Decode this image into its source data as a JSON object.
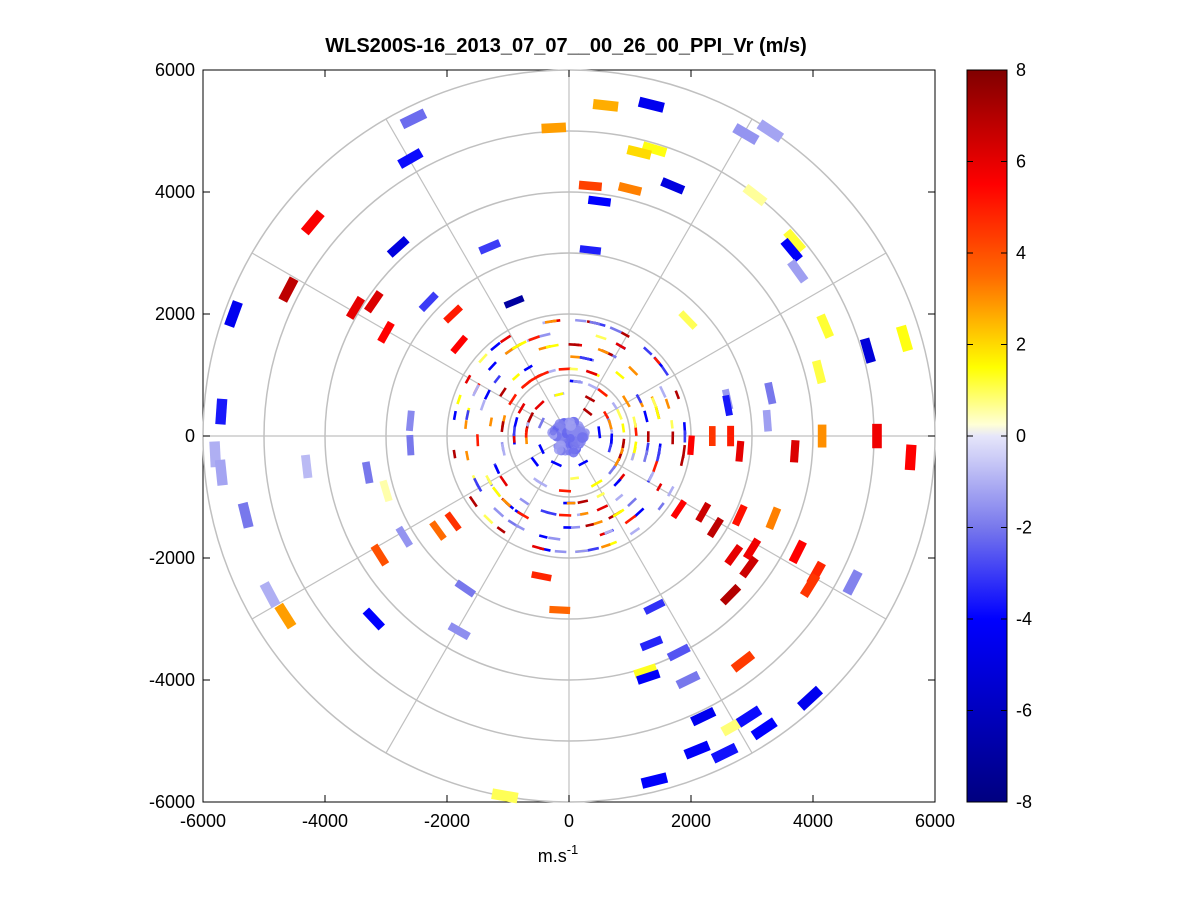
{
  "chart_data": {
    "type": "scatter",
    "subtype": "polar-ppi",
    "title": "WLS200S-16_2013_07_07__00_26_00_PPI_Vr (m/s)",
    "xlabel_base": "m.s",
    "xlabel_exp": "-1",
    "ylabel": "",
    "xlim": [
      -6000,
      6000
    ],
    "ylim": [
      -6000,
      6000
    ],
    "xticks": [
      "-6000",
      "-4000",
      "-2000",
      "0",
      "2000",
      "4000",
      "6000"
    ],
    "yticks": [
      "6000",
      "4000",
      "2000",
      "0",
      "-2000",
      "-4000",
      "-6000"
    ],
    "xtick_values": [
      -6000,
      -4000,
      -2000,
      0,
      2000,
      4000,
      6000
    ],
    "ytick_values": [
      6000,
      4000,
      2000,
      0,
      -2000,
      -4000,
      -6000
    ],
    "grid_rings_m": [
      1000,
      2000,
      3000,
      4000,
      5000,
      6000
    ],
    "spoke_angles_deg": [
      0,
      30,
      60,
      90,
      120,
      150,
      180,
      210,
      240,
      270,
      300,
      330
    ],
    "colorbar": {
      "min": -8,
      "max": 8,
      "ticks": [
        "8",
        "6",
        "4",
        "2",
        "0",
        "-2",
        "-4",
        "-6",
        "-8"
      ],
      "tick_values": [
        8,
        6,
        4,
        2,
        0,
        -2,
        -4,
        -6,
        -8
      ],
      "stops": [
        {
          "v": -8,
          "c": "#000080"
        },
        {
          "v": -4,
          "c": "#0000ff"
        },
        {
          "v": -2,
          "c": "#7878ec"
        },
        {
          "v": 0,
          "c": "#e6e6fa"
        },
        {
          "v": 0.01,
          "c": "#ffffff"
        },
        {
          "v": 1.5,
          "c": "#ffff00"
        },
        {
          "v": 3.5,
          "c": "#ff6a00"
        },
        {
          "v": 5.5,
          "c": "#ff0000"
        },
        {
          "v": 8,
          "c": "#800000"
        }
      ]
    },
    "points": [
      {
        "x": 1350,
        "y": 5430,
        "v": -4.5
      },
      {
        "x": 600,
        "y": 5420,
        "v": 2.6
      },
      {
        "x": -250,
        "y": 5050,
        "v": 2.8
      },
      {
        "x": -2550,
        "y": 5200,
        "v": -2.2
      },
      {
        "x": 1400,
        "y": 4700,
        "v": 1.4
      },
      {
        "x": 1150,
        "y": 4650,
        "v": 2.0
      },
      {
        "x": 1700,
        "y": 4100,
        "v": -5.0
      },
      {
        "x": 1000,
        "y": 4050,
        "v": 3.2
      },
      {
        "x": 350,
        "y": 4100,
        "v": 4.3
      },
      {
        "x": -2600,
        "y": 4550,
        "v": -3.8
      },
      {
        "x": 2900,
        "y": 4950,
        "v": -1.5
      },
      {
        "x": 3300,
        "y": 5000,
        "v": -1.2
      },
      {
        "x": 3050,
        "y": 3950,
        "v": 0.6
      },
      {
        "x": 3700,
        "y": 3200,
        "v": 1.2
      },
      {
        "x": 3650,
        "y": 3050,
        "v": -4.2
      },
      {
        "x": 3750,
        "y": 2700,
        "v": -1.3
      },
      {
        "x": 500,
        "y": 3850,
        "v": -4.0
      },
      {
        "x": 350,
        "y": 3050,
        "v": -3.5
      },
      {
        "x": -2800,
        "y": 3100,
        "v": -5.0
      },
      {
        "x": -1300,
        "y": 3100,
        "v": -3.0
      },
      {
        "x": -4200,
        "y": 3500,
        "v": 5.6
      },
      {
        "x": -4600,
        "y": 2400,
        "v": 6.8
      },
      {
        "x": -3500,
        "y": 2100,
        "v": 6.0
      },
      {
        "x": -3200,
        "y": 2200,
        "v": 6.2
      },
      {
        "x": -3000,
        "y": 1700,
        "v": 5.5
      },
      {
        "x": -2300,
        "y": 2200,
        "v": -3.0
      },
      {
        "x": -1900,
        "y": 2000,
        "v": 5.0
      },
      {
        "x": -1800,
        "y": 1500,
        "v": 5.5
      },
      {
        "x": -900,
        "y": 2200,
        "v": -7.0
      },
      {
        "x": -5500,
        "y": 2000,
        "v": -4.5
      },
      {
        "x": 1950,
        "y": 1900,
        "v": 1.0
      },
      {
        "x": 4200,
        "y": 1800,
        "v": 1.2
      },
      {
        "x": 4100,
        "y": 1050,
        "v": 1.1
      },
      {
        "x": 5500,
        "y": 1600,
        "v": 1.4
      },
      {
        "x": 4900,
        "y": 1400,
        "v": -5.2
      },
      {
        "x": 3300,
        "y": 700,
        "v": -2.0
      },
      {
        "x": 3250,
        "y": 250,
        "v": -1.3
      },
      {
        "x": 2600,
        "y": 600,
        "v": -1.4
      },
      {
        "x": 2600,
        "y": 500,
        "v": -3.6
      },
      {
        "x": 4150,
        "y": 0,
        "v": 3.0
      },
      {
        "x": 5050,
        "y": 0,
        "v": 5.8
      },
      {
        "x": 5600,
        "y": -350,
        "v": 5.5
      },
      {
        "x": 3700,
        "y": -250,
        "v": 6.2
      },
      {
        "x": 2800,
        "y": -250,
        "v": 6.0
      },
      {
        "x": 2350,
        "y": 0,
        "v": 4.5
      },
      {
        "x": 2650,
        "y": 0,
        "v": 5.0
      },
      {
        "x": 2000,
        "y": -150,
        "v": 5.5
      },
      {
        "x": -5800,
        "y": -300,
        "v": -1.0
      },
      {
        "x": -5700,
        "y": 400,
        "v": -3.6
      },
      {
        "x": -5700,
        "y": -600,
        "v": -1.2
      },
      {
        "x": -4300,
        "y": -500,
        "v": -0.8
      },
      {
        "x": -3300,
        "y": -600,
        "v": -2.0
      },
      {
        "x": -3000,
        "y": -900,
        "v": 0.5
      },
      {
        "x": -2600,
        "y": -150,
        "v": -2.0
      },
      {
        "x": -2600,
        "y": 250,
        "v": -1.7
      },
      {
        "x": -5300,
        "y": -1300,
        "v": -2.0
      },
      {
        "x": -4900,
        "y": -2600,
        "v": -1.0
      },
      {
        "x": -4650,
        "y": -2950,
        "v": 2.8
      },
      {
        "x": -3100,
        "y": -1950,
        "v": 4.0
      },
      {
        "x": -2700,
        "y": -1650,
        "v": -1.5
      },
      {
        "x": -2150,
        "y": -1550,
        "v": 3.5
      },
      {
        "x": -1900,
        "y": -1400,
        "v": 4.6
      },
      {
        "x": -3200,
        "y": -3000,
        "v": -4.0
      },
      {
        "x": -1700,
        "y": -2500,
        "v": -2.0
      },
      {
        "x": -1800,
        "y": -3200,
        "v": -1.6
      },
      {
        "x": -450,
        "y": -2300,
        "v": 4.8
      },
      {
        "x": -150,
        "y": -2850,
        "v": 3.6
      },
      {
        "x": -1050,
        "y": -5900,
        "v": 1.0
      },
      {
        "x": 2700,
        "y": -1950,
        "v": 6.0
      },
      {
        "x": 2950,
        "y": -2150,
        "v": 6.5
      },
      {
        "x": 2650,
        "y": -2600,
        "v": 7.0
      },
      {
        "x": 3000,
        "y": -1850,
        "v": 5.8
      },
      {
        "x": 2400,
        "y": -1500,
        "v": 6.8
      },
      {
        "x": 2200,
        "y": -1250,
        "v": 6.5
      },
      {
        "x": 1800,
        "y": -1200,
        "v": 5.5
      },
      {
        "x": 2800,
        "y": -1300,
        "v": 5.2
      },
      {
        "x": 3350,
        "y": -1350,
        "v": 3.2
      },
      {
        "x": 3750,
        "y": -1900,
        "v": 5.5
      },
      {
        "x": 4050,
        "y": -2250,
        "v": 4.8
      },
      {
        "x": 3950,
        "y": -2450,
        "v": 4.5
      },
      {
        "x": 4650,
        "y": -2400,
        "v": -1.8
      },
      {
        "x": 2850,
        "y": -3700,
        "v": 4.4
      },
      {
        "x": 1400,
        "y": -2800,
        "v": -3.2
      },
      {
        "x": 1350,
        "y": -3400,
        "v": -3.4
      },
      {
        "x": 1800,
        "y": -3550,
        "v": -2.6
      },
      {
        "x": 1250,
        "y": -3850,
        "v": 1.3
      },
      {
        "x": 1300,
        "y": -3950,
        "v": -4.2
      },
      {
        "x": 1950,
        "y": -4000,
        "v": -2.0
      },
      {
        "x": 2700,
        "y": -4750,
        "v": 0.8
      },
      {
        "x": 2950,
        "y": -4600,
        "v": -3.8
      },
      {
        "x": 3200,
        "y": -4800,
        "v": -4.0
      },
      {
        "x": 3950,
        "y": -4300,
        "v": -4.5
      },
      {
        "x": 2200,
        "y": -4600,
        "v": -4.5
      },
      {
        "x": 2100,
        "y": -5150,
        "v": -4.2
      },
      {
        "x": 2550,
        "y": -5200,
        "v": -3.7
      },
      {
        "x": 1400,
        "y": -5650,
        "v": -4.1
      }
    ]
  }
}
